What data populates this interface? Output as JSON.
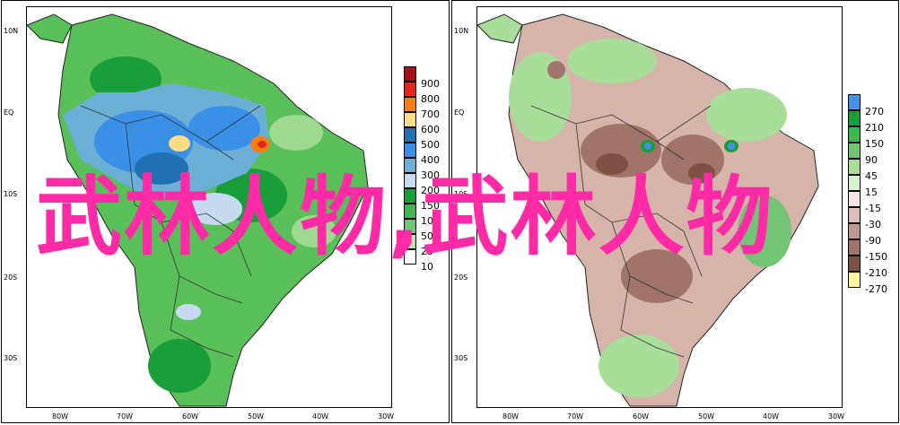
{
  "panels": [
    {
      "lat_labels": [
        "10N",
        "EQ",
        "10S",
        "20S",
        "30S"
      ],
      "lon_labels": [
        "80W",
        "70W",
        "60W",
        "50W",
        "40W",
        "30W"
      ],
      "legend": {
        "labels": [
          "900",
          "800",
          "700",
          "600",
          "500",
          "400",
          "300",
          "200",
          "150",
          "100",
          "50",
          "25",
          "10"
        ],
        "colors": [
          "#a50f15",
          "#e5261c",
          "#f77f13",
          "#fedc88",
          "#2171b5",
          "#3a8fe6",
          "#6baed6",
          "#c6dbef",
          "#1a9e3a",
          "#41b54f",
          "#74c476",
          "#b8e6a8",
          "#ffffff"
        ]
      }
    },
    {
      "lat_labels": [
        "10N",
        "EQ",
        "10S",
        "20S",
        "30S"
      ],
      "lon_labels": [
        "80W",
        "70W",
        "60W",
        "50W",
        "40W",
        "30W"
      ],
      "legend": {
        "labels": [
          "270",
          "210",
          "150",
          "90",
          "45",
          "15",
          "-15",
          "-30",
          "-90",
          "-150",
          "-210",
          "-270"
        ],
        "colors": [
          "#4a90e2",
          "#1a9e3a",
          "#41b54f",
          "#74c476",
          "#a8dd9a",
          "#d9f2d0",
          "#f3e6e2",
          "#dcc0b8",
          "#c09a90",
          "#a07468",
          "#7d5244",
          "#fff3a0"
        ]
      }
    }
  ],
  "watermark": "武林人物,武林人物"
}
